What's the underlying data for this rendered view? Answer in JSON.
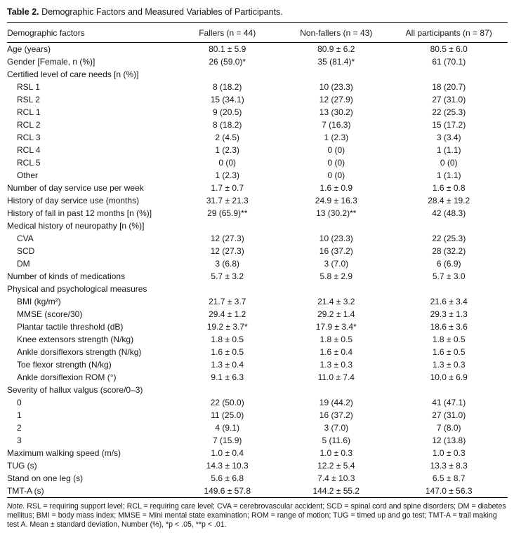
{
  "caption": {
    "label": "Table 2.",
    "text": " Demographic Factors and Measured Variables of Participants."
  },
  "table": {
    "columns": [
      "Demographic factors",
      "Fallers (n = 44)",
      "Non-fallers (n = 43)",
      "All participants (n = 87)"
    ],
    "rows": [
      {
        "label": "Age (years)",
        "indent": 0,
        "values": [
          "80.1 ± 5.9",
          "80.9 ± 6.2",
          "80.5 ± 6.0"
        ]
      },
      {
        "label": "Gender [Female, n (%)]",
        "indent": 0,
        "values": [
          "26 (59.0)*",
          "35 (81.4)*",
          "61 (70.1)"
        ]
      },
      {
        "label": "Certified level of care needs [n (%)]",
        "indent": 0,
        "values": [
          "",
          "",
          ""
        ]
      },
      {
        "label": "RSL 1",
        "indent": 1,
        "values": [
          "8 (18.2)",
          "10 (23.3)",
          "18 (20.7)"
        ]
      },
      {
        "label": "RSL 2",
        "indent": 1,
        "values": [
          "15 (34.1)",
          "12 (27.9)",
          "27 (31.0)"
        ]
      },
      {
        "label": "RCL 1",
        "indent": 1,
        "values": [
          "9 (20.5)",
          "13 (30.2)",
          "22 (25.3)"
        ]
      },
      {
        "label": "RCL 2",
        "indent": 1,
        "values": [
          "8 (18.2)",
          "7 (16.3)",
          "15 (17.2)"
        ]
      },
      {
        "label": "RCL 3",
        "indent": 1,
        "values": [
          "2 (4.5)",
          "1 (2.3)",
          "3 (3.4)"
        ]
      },
      {
        "label": "RCL 4",
        "indent": 1,
        "values": [
          "1 (2.3)",
          "0 (0)",
          "1 (1.1)"
        ]
      },
      {
        "label": "RCL 5",
        "indent": 1,
        "values": [
          "0 (0)",
          "0 (0)",
          "0 (0)"
        ]
      },
      {
        "label": "Other",
        "indent": 1,
        "values": [
          "1 (2.3)",
          "0 (0)",
          "1 (1.1)"
        ]
      },
      {
        "label": "Number of day service use per week",
        "indent": 0,
        "values": [
          "1.7 ± 0.7",
          "1.6 ± 0.9",
          "1.6 ± 0.8"
        ]
      },
      {
        "label": "History of day service use (months)",
        "indent": 0,
        "values": [
          "31.7 ± 21.3",
          "24.9 ± 16.3",
          "28.4 ± 19.2"
        ]
      },
      {
        "label": "History of fall in past 12 months [n (%)]",
        "indent": 0,
        "values": [
          "29 (65.9)**",
          "13 (30.2)**",
          "42 (48.3)"
        ]
      },
      {
        "label": "Medical history of neuropathy [n (%)]",
        "indent": 0,
        "values": [
          "",
          "",
          ""
        ]
      },
      {
        "label": "CVA",
        "indent": 1,
        "values": [
          "12 (27.3)",
          "10 (23.3)",
          "22 (25.3)"
        ]
      },
      {
        "label": "SCD",
        "indent": 1,
        "values": [
          "12 (27.3)",
          "16 (37.2)",
          "28 (32.2)"
        ]
      },
      {
        "label": "DM",
        "indent": 1,
        "values": [
          "3 (6.8)",
          "3 (7.0)",
          "6 (6.9)"
        ]
      },
      {
        "label": "Number of kinds of medications",
        "indent": 0,
        "values": [
          "5.7 ± 3.2",
          "5.8 ± 2.9",
          "5.7 ± 3.0"
        ]
      },
      {
        "label": "Physical and psychological measures",
        "indent": 0,
        "values": [
          "",
          "",
          ""
        ]
      },
      {
        "label": "BMI (kg/m²)",
        "indent": 1,
        "values": [
          "21.7 ± 3.7",
          "21.4 ± 3.2",
          "21.6 ± 3.4"
        ]
      },
      {
        "label": "MMSE (score/30)",
        "indent": 1,
        "values": [
          "29.4 ± 1.2",
          "29.2 ± 1.4",
          "29.3 ± 1.3"
        ]
      },
      {
        "label": "Plantar tactile threshold (dB)",
        "indent": 1,
        "values": [
          "19.2 ± 3.7*",
          "17.9 ± 3.4*",
          "18.6 ± 3.6"
        ]
      },
      {
        "label": "Knee extensors strength (N/kg)",
        "indent": 1,
        "values": [
          "1.8 ± 0.5",
          "1.8 ± 0.5",
          "1.8 ± 0.5"
        ]
      },
      {
        "label": "Ankle dorsiflexors strength (N/kg)",
        "indent": 1,
        "values": [
          "1.6 ± 0.5",
          "1.6 ± 0.4",
          "1.6 ± 0.5"
        ]
      },
      {
        "label": "Toe flexor strength (N/kg)",
        "indent": 1,
        "values": [
          "1.3 ± 0.4",
          "1.3 ± 0.3",
          "1.3 ± 0.3"
        ]
      },
      {
        "label": "Ankle dorsiflexion ROM (°)",
        "indent": 1,
        "values": [
          "9.1 ± 6.3",
          "11.0 ± 7.4",
          "10.0 ± 6.9"
        ]
      },
      {
        "label": "Severity of hallux valgus (score/0–3)",
        "indent": 0,
        "values": [
          "",
          "",
          ""
        ]
      },
      {
        "label": "0",
        "indent": 1,
        "values": [
          "22 (50.0)",
          "19 (44.2)",
          "41 (47.1)"
        ]
      },
      {
        "label": "1",
        "indent": 1,
        "values": [
          "11 (25.0)",
          "16 (37.2)",
          "27 (31.0)"
        ]
      },
      {
        "label": "2",
        "indent": 1,
        "values": [
          "4 (9.1)",
          "3 (7.0)",
          "7 (8.0)"
        ]
      },
      {
        "label": "3",
        "indent": 1,
        "values": [
          "7 (15.9)",
          "5 (11.6)",
          "12 (13.8)"
        ]
      },
      {
        "label": "Maximum walking speed (m/s)",
        "indent": 0,
        "values": [
          "1.0 ± 0.4",
          "1.0 ± 0.3",
          "1.0 ± 0.3"
        ]
      },
      {
        "label": "TUG (s)",
        "indent": 0,
        "values": [
          "14.3 ± 10.3",
          "12.2 ± 5.4",
          "13.3 ± 8.3"
        ]
      },
      {
        "label": "Stand on one leg (s)",
        "indent": 0,
        "values": [
          "5.6 ± 6.8",
          "7.4 ± 10.3",
          "6.5 ± 8.7"
        ]
      },
      {
        "label": "TMT-A (s)",
        "indent": 0,
        "values": [
          "149.6 ± 57.8",
          "144.2 ± 55.2",
          "147.0 ± 56.3"
        ]
      }
    ]
  },
  "footnote": {
    "note_label": "Note.",
    "text": " RSL = requiring support level; RCL = requiring care level; CVA = cerebrovascular accident; SCD = spinal cord and spine disorders; DM = diabetes mellitus; BMI = body mass index; MMSE = Mini mental state examination; ROM = range of motion; TUG = timed up and go test; TMT-A = trail making test A. Mean ± standard deviation, Number (%), *p < .05, **p < .01."
  }
}
